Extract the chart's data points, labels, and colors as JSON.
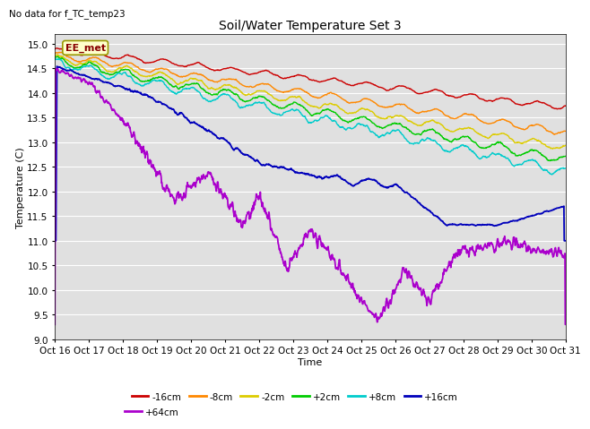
{
  "title": "Soil/Water Temperature Set 3",
  "xlabel": "Time",
  "ylabel": "Temperature (C)",
  "annotation": "No data for f_TC_temp23",
  "ee_met_label": "EE_met",
  "ylim": [
    9.0,
    15.2
  ],
  "yticks": [
    9.0,
    9.5,
    10.0,
    10.5,
    11.0,
    11.5,
    12.0,
    12.5,
    13.0,
    13.5,
    14.0,
    14.5,
    15.0
  ],
  "plot_bg_color": "#e0e0e0",
  "grid_color": "#ffffff",
  "series": [
    {
      "label": "-16cm",
      "color": "#cc0000"
    },
    {
      "label": "-8cm",
      "color": "#ff8800"
    },
    {
      "label": "-2cm",
      "color": "#ddcc00"
    },
    {
      "label": "+2cm",
      "color": "#00cc00"
    },
    {
      "label": "+8cm",
      "color": "#00cccc"
    },
    {
      "label": "+16cm",
      "color": "#0000bb"
    },
    {
      "label": "+64cm",
      "color": "#aa00cc"
    }
  ],
  "x_tick_labels": [
    "Oct 16",
    "Oct 17",
    "Oct 18",
    "Oct 19",
    "Oct 20",
    "Oct 21",
    "Oct 22",
    "Oct 23",
    "Oct 24",
    "Oct 25",
    "Oct 26",
    "Oct 27",
    "Oct 28",
    "Oct 29",
    "Oct 30",
    "Oct 31"
  ],
  "n_points": 1500,
  "seed": 42
}
